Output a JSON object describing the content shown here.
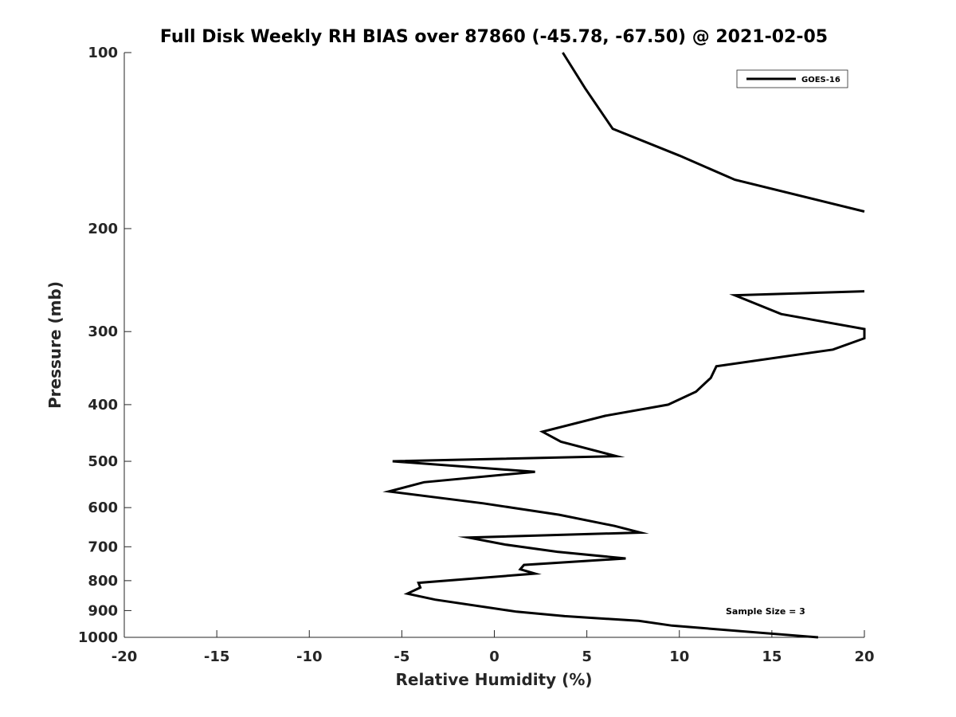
{
  "chart_data": {
    "type": "line",
    "title": "Full Disk Weekly RH BIAS over 87860 (-45.78, -67.50) @ 2021-02-05",
    "xlabel": "Relative Humidity (%)",
    "ylabel": "Pressure (mb)",
    "xlim": [
      -20,
      20
    ],
    "ylim": [
      100,
      1000
    ],
    "yscale": "log",
    "yreversed": true,
    "xticks": [
      -20,
      -15,
      -10,
      -5,
      0,
      5,
      10,
      15,
      20
    ],
    "xtick_labels": [
      "-20",
      "-15",
      "-10",
      "-5",
      "0",
      "5",
      "10",
      "15",
      "20"
    ],
    "yticks": [
      100,
      200,
      300,
      400,
      500,
      600,
      700,
      800,
      900,
      1000
    ],
    "ytick_labels": [
      "100",
      "200",
      "300",
      "400",
      "500",
      "600",
      "700",
      "800",
      "900",
      "1000"
    ],
    "legend": {
      "location": "top-right",
      "entries": [
        "GOES-16"
      ]
    },
    "annotation": "Sample Size = 3",
    "series": [
      {
        "name": "GOES-16",
        "color": "#000000",
        "segments": [
          [
            {
              "x": 3.7,
              "p": 100
            },
            {
              "x": 4.9,
              "p": 115
            },
            {
              "x": 6.4,
              "p": 135
            },
            {
              "x": 10.0,
              "p": 150
            },
            {
              "x": 13.0,
              "p": 165
            },
            {
              "x": 20.0,
              "p": 187
            }
          ],
          [
            {
              "x": 20.0,
              "p": 256
            },
            {
              "x": 13.0,
              "p": 260
            },
            {
              "x": 15.5,
              "p": 280
            },
            {
              "x": 20.0,
              "p": 297
            },
            {
              "x": 20.0,
              "p": 308
            },
            {
              "x": 18.3,
              "p": 322
            },
            {
              "x": 12.0,
              "p": 344
            },
            {
              "x": 11.7,
              "p": 360
            },
            {
              "x": 10.9,
              "p": 380
            },
            {
              "x": 9.4,
              "p": 400
            },
            {
              "x": 6.0,
              "p": 418
            },
            {
              "x": 2.6,
              "p": 445
            },
            {
              "x": 3.6,
              "p": 463
            },
            {
              "x": 6.6,
              "p": 490
            },
            {
              "x": -5.5,
              "p": 500
            },
            {
              "x": 2.2,
              "p": 521
            },
            {
              "x": -3.8,
              "p": 543
            },
            {
              "x": -5.7,
              "p": 563
            },
            {
              "x": -0.6,
              "p": 590
            },
            {
              "x": 3.5,
              "p": 617
            },
            {
              "x": 6.5,
              "p": 645
            },
            {
              "x": 7.9,
              "p": 662
            },
            {
              "x": -1.4,
              "p": 675
            },
            {
              "x": 0.6,
              "p": 694
            },
            {
              "x": 3.4,
              "p": 714
            },
            {
              "x": 7.1,
              "p": 733
            },
            {
              "x": 1.6,
              "p": 752
            },
            {
              "x": 1.4,
              "p": 765
            },
            {
              "x": 2.2,
              "p": 778
            },
            {
              "x": -4.1,
              "p": 807
            },
            {
              "x": -4.0,
              "p": 822
            },
            {
              "x": -4.7,
              "p": 842
            },
            {
              "x": -3.2,
              "p": 862
            },
            {
              "x": 1.2,
              "p": 904
            },
            {
              "x": 3.8,
              "p": 920
            },
            {
              "x": 7.8,
              "p": 937
            },
            {
              "x": 9.6,
              "p": 955
            },
            {
              "x": 17.5,
              "p": 1000
            }
          ]
        ]
      }
    ]
  }
}
